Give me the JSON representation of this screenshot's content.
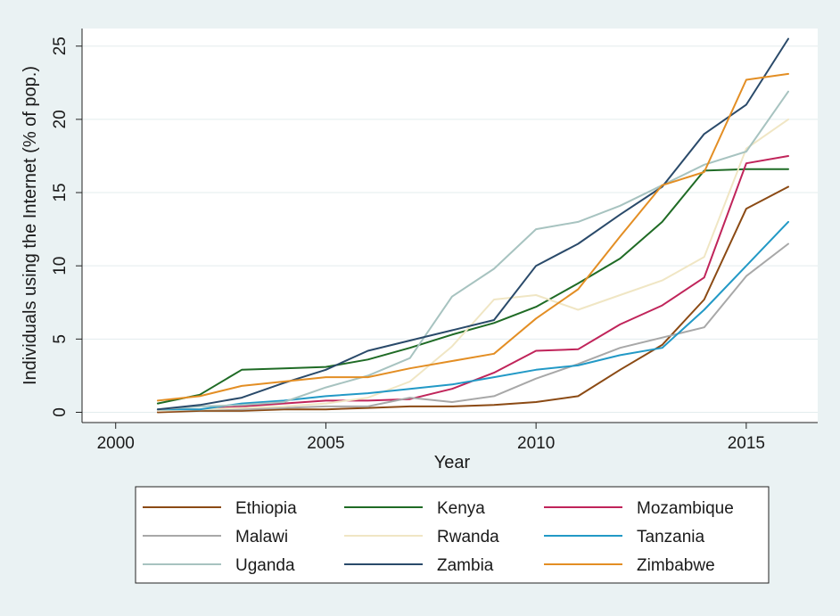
{
  "chart_data": {
    "type": "line",
    "xlabel": "Year",
    "ylabel": "Individuals using the Internet (% of pop.)",
    "xlim": [
      1999.2,
      2016.7
    ],
    "ylim": [
      -0.7,
      26.2
    ],
    "xticks": [
      2000,
      2005,
      2010,
      2015
    ],
    "yticks": [
      0,
      5,
      10,
      15,
      20,
      25
    ],
    "grid": "horizontal",
    "legend_position": "bottom",
    "background_color": "#eaf2f3",
    "plot_background_color": "#ffffff",
    "x": [
      2001,
      2002,
      2003,
      2004,
      2005,
      2006,
      2007,
      2008,
      2009,
      2010,
      2011,
      2012,
      2013,
      2014,
      2015,
      2016
    ],
    "series": [
      {
        "name": "Ethiopia",
        "color": "#8b4a14",
        "values": [
          0.0,
          0.1,
          0.1,
          0.2,
          0.2,
          0.3,
          0.4,
          0.4,
          0.5,
          0.7,
          1.1,
          2.9,
          4.6,
          7.7,
          13.9,
          15.4
        ]
      },
      {
        "name": "Kenya",
        "color": "#1f6b25",
        "values": [
          0.6,
          1.2,
          2.9,
          3.0,
          3.1,
          3.6,
          4.4,
          5.3,
          6.1,
          7.2,
          8.8,
          10.5,
          13.0,
          16.5,
          16.6,
          16.6
        ]
      },
      {
        "name": "Mozambique",
        "color": "#c0245a",
        "values": [
          0.1,
          0.2,
          0.4,
          0.6,
          0.8,
          0.8,
          0.9,
          1.6,
          2.7,
          4.2,
          4.3,
          6.0,
          7.3,
          9.2,
          17.0,
          17.5
        ]
      },
      {
        "name": "Malawi",
        "color": "#a8a8a8",
        "values": [
          0.2,
          0.2,
          0.2,
          0.3,
          0.4,
          0.4,
          1.0,
          0.7,
          1.1,
          2.3,
          3.3,
          4.4,
          5.1,
          5.8,
          9.3,
          11.5
        ]
      },
      {
        "name": "Rwanda",
        "color": "#f0e6c4",
        "values": [
          0.1,
          0.2,
          0.3,
          0.4,
          0.6,
          1.0,
          2.1,
          4.5,
          7.7,
          8.0,
          7.0,
          8.0,
          9.0,
          10.6,
          18.0,
          20.0
        ]
      },
      {
        "name": "Tanzania",
        "color": "#2299c6",
        "values": [
          0.2,
          0.2,
          0.6,
          0.8,
          1.1,
          1.3,
          1.6,
          1.9,
          2.4,
          2.9,
          3.2,
          3.9,
          4.4,
          7.0,
          10.0,
          13.0
        ]
      },
      {
        "name": "Uganda",
        "color": "#a7c3c0",
        "values": [
          0.2,
          0.4,
          0.5,
          0.7,
          1.7,
          2.5,
          3.7,
          7.9,
          9.8,
          12.5,
          13.0,
          14.1,
          15.5,
          16.9,
          17.8,
          21.9
        ]
      },
      {
        "name": "Zambia",
        "color": "#2a4a6a",
        "values": [
          0.2,
          0.5,
          1.0,
          2.0,
          2.9,
          4.2,
          4.9,
          5.6,
          6.3,
          10.0,
          11.5,
          13.5,
          15.4,
          19.0,
          21.0,
          25.5
        ]
      },
      {
        "name": "Zimbabwe",
        "color": "#e38e24",
        "values": [
          0.8,
          1.1,
          1.8,
          2.1,
          2.4,
          2.4,
          3.0,
          3.5,
          4.0,
          6.4,
          8.4,
          12.0,
          15.5,
          16.4,
          22.7,
          23.1
        ]
      }
    ]
  }
}
